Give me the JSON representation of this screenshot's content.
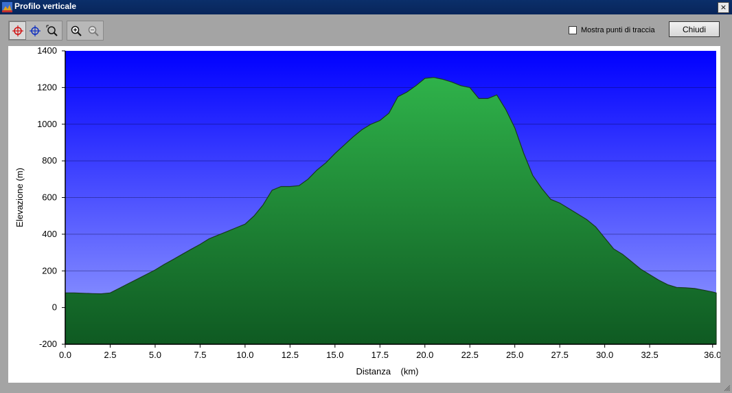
{
  "window": {
    "title": "Profilo verticale",
    "close_glyph": "×"
  },
  "toolbar": {
    "tools": [
      {
        "name": "crosshair-red-icon",
        "active": true
      },
      {
        "name": "crosshair-blue-icon",
        "active": false
      },
      {
        "name": "zoom-area-icon",
        "active": false
      }
    ],
    "zoom": [
      {
        "name": "zoom-in-icon"
      },
      {
        "name": "zoom-out-icon"
      }
    ]
  },
  "options": {
    "show_points_label": "Mostra punti di traccia",
    "show_points_checked": false
  },
  "close_button": "Chiudi",
  "colors": {
    "sky_top": "#0000ff",
    "sky_bottom": "#9aa3ff",
    "terrain_top": "#2fb24a",
    "terrain_bottom": "#0f5a22"
  },
  "chart_data": {
    "type": "area",
    "xlabel": "Distanza    (km)",
    "ylabel": "Elevazione  (m)",
    "xlim": [
      0,
      36.2
    ],
    "ylim": [
      -200,
      1400
    ],
    "xticks": [
      "0.0",
      "2.5",
      "5.0",
      "7.5",
      "10.0",
      "12.5",
      "15.0",
      "17.5",
      "20.0",
      "22.5",
      "25.0",
      "27.5",
      "30.0",
      "32.5",
      "36.0"
    ],
    "xtick_values": [
      0,
      2.5,
      5,
      7.5,
      10,
      12.5,
      15,
      17.5,
      20,
      22.5,
      25,
      27.5,
      30,
      32.5,
      36
    ],
    "yticks": [
      "1400",
      "1200",
      "1000",
      "800",
      "600",
      "400",
      "200",
      "0",
      "-200"
    ],
    "ytick_values": [
      1400,
      1200,
      1000,
      800,
      600,
      400,
      200,
      0,
      -200
    ],
    "grid": true,
    "x": [
      0,
      0.5,
      1,
      1.5,
      2,
      2.5,
      3,
      3.5,
      4,
      4.5,
      5,
      5.5,
      6,
      6.5,
      7,
      7.5,
      8,
      8.5,
      9,
      9.5,
      10,
      10.5,
      11,
      11.5,
      12,
      12.5,
      13,
      13.5,
      14,
      14.5,
      15,
      15.5,
      16,
      16.5,
      17,
      17.5,
      18,
      18.5,
      19,
      19.5,
      20,
      20.5,
      21,
      21.5,
      22,
      22.5,
      23,
      23.5,
      24,
      24.5,
      25,
      25.5,
      26,
      26.5,
      27,
      27.5,
      28,
      28.5,
      29,
      29.5,
      30,
      30.5,
      31,
      31.5,
      32,
      32.5,
      33,
      33.5,
      34,
      34.5,
      35,
      35.5,
      36,
      36.2
    ],
    "y": [
      80,
      80,
      78,
      76,
      75,
      80,
      105,
      130,
      155,
      180,
      205,
      235,
      262,
      290,
      318,
      345,
      375,
      395,
      415,
      435,
      455,
      500,
      560,
      640,
      660,
      660,
      665,
      700,
      750,
      790,
      840,
      885,
      930,
      970,
      1000,
      1020,
      1060,
      1150,
      1175,
      1210,
      1250,
      1255,
      1245,
      1230,
      1210,
      1200,
      1140,
      1140,
      1160,
      1080,
      980,
      840,
      720,
      650,
      590,
      570,
      540,
      510,
      480,
      440,
      380,
      320,
      290,
      250,
      210,
      180,
      150,
      125,
      110,
      108,
      104,
      95,
      85,
      80
    ]
  }
}
